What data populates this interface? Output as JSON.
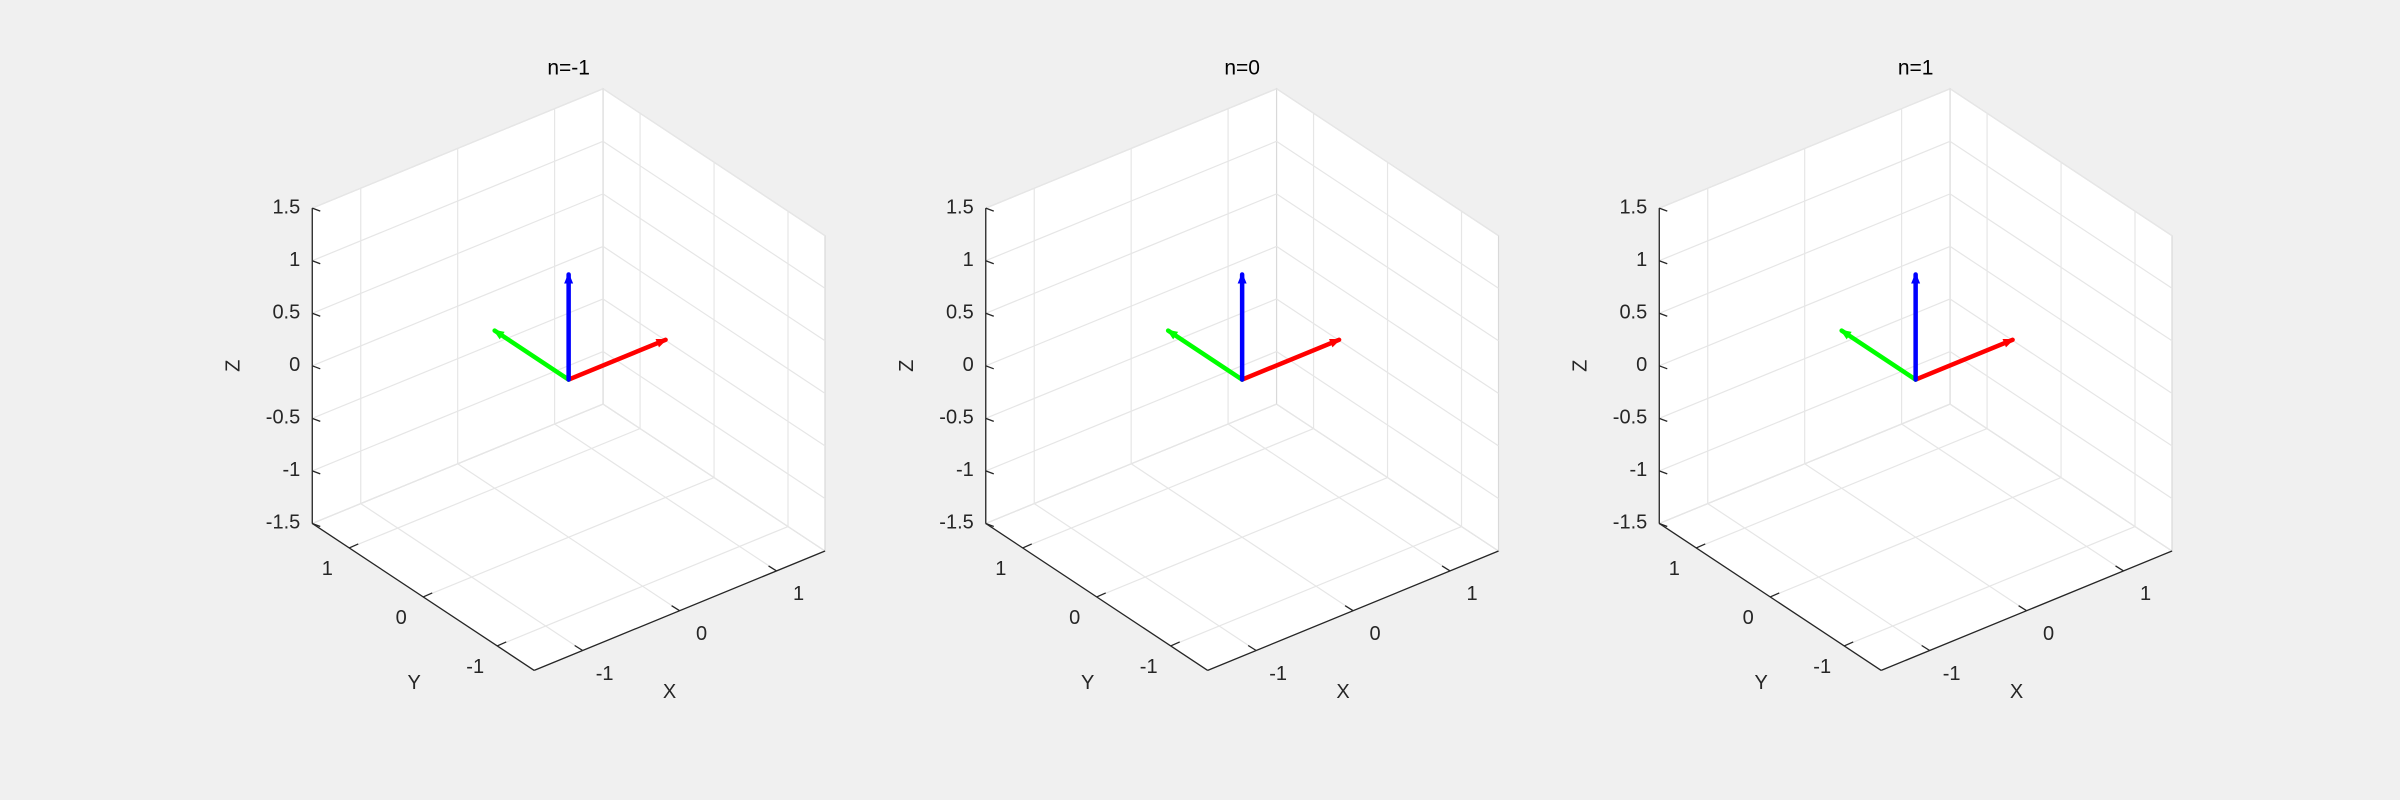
{
  "chart_data": [
    {
      "type": "quiver3d",
      "title": "n=-1",
      "xlabel": "X",
      "ylabel": "Y",
      "zlabel": "Z",
      "xlim": [
        -1.5,
        1.5
      ],
      "ylim": [
        -1.5,
        1.5
      ],
      "zlim": [
        -1.5,
        1.5
      ],
      "xticks": [
        -1,
        0,
        1
      ],
      "yticks": [
        -1,
        0,
        1
      ],
      "zticks": [
        -1.5,
        -1,
        -0.5,
        0,
        0.5,
        1,
        1.5
      ],
      "grid": true,
      "series": [
        {
          "color": "#ff0000",
          "x": [
            0,
            1
          ],
          "y": [
            0,
            0
          ],
          "z": [
            0,
            0
          ]
        },
        {
          "color": "#00ff00",
          "x": [
            0,
            0
          ],
          "y": [
            0,
            1
          ],
          "z": [
            0,
            0
          ]
        },
        {
          "color": "#0000ff",
          "x": [
            0,
            0
          ],
          "y": [
            0,
            0
          ],
          "z": [
            0,
            1
          ]
        }
      ]
    },
    {
      "type": "quiver3d",
      "title": "n=0",
      "xlabel": "X",
      "ylabel": "Y",
      "zlabel": "Z",
      "xlim": [
        -1.5,
        1.5
      ],
      "ylim": [
        -1.5,
        1.5
      ],
      "zlim": [
        -1.5,
        1.5
      ],
      "xticks": [
        -1,
        0,
        1
      ],
      "yticks": [
        -1,
        0,
        1
      ],
      "zticks": [
        -1.5,
        -1,
        -0.5,
        0,
        0.5,
        1,
        1.5
      ],
      "grid": true,
      "series": [
        {
          "color": "#ff0000",
          "x": [
            0,
            1
          ],
          "y": [
            0,
            0
          ],
          "z": [
            0,
            0
          ]
        },
        {
          "color": "#00ff00",
          "x": [
            0,
            0
          ],
          "y": [
            0,
            1
          ],
          "z": [
            0,
            0
          ]
        },
        {
          "color": "#0000ff",
          "x": [
            0,
            0
          ],
          "y": [
            0,
            0
          ],
          "z": [
            0,
            1
          ]
        }
      ]
    },
    {
      "type": "quiver3d",
      "title": "n=1",
      "xlabel": "X",
      "ylabel": "Y",
      "zlabel": "Z",
      "xlim": [
        -1.5,
        1.5
      ],
      "ylim": [
        -1.5,
        1.5
      ],
      "zlim": [
        -1.5,
        1.5
      ],
      "xticks": [
        -1,
        0,
        1
      ],
      "yticks": [
        -1,
        0,
        1
      ],
      "zticks": [
        -1.5,
        -1,
        -0.5,
        0,
        0.5,
        1,
        1.5
      ],
      "grid": true,
      "series": [
        {
          "color": "#ff0000",
          "x": [
            0,
            1
          ],
          "y": [
            0,
            0
          ],
          "z": [
            0,
            0
          ]
        },
        {
          "color": "#00ff00",
          "x": [
            0,
            0
          ],
          "y": [
            0,
            1
          ],
          "z": [
            0,
            0
          ]
        },
        {
          "color": "#0000ff",
          "x": [
            0,
            0
          ],
          "y": [
            0,
            0
          ],
          "z": [
            0,
            1
          ]
        }
      ]
    }
  ]
}
